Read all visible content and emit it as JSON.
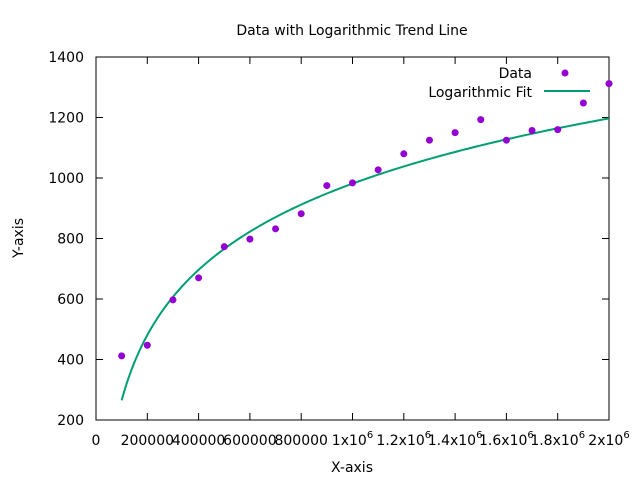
{
  "chart_data": {
    "type": "scatter",
    "title": "Data with Logarithmic Trend Line",
    "xlabel": "X-axis",
    "ylabel": "Y-axis",
    "xlim": [
      0,
      2000000
    ],
    "ylim": [
      200,
      1400
    ],
    "grid": false,
    "legend_position": "top-right",
    "x_ticks": [
      {
        "value": 0,
        "label": "0",
        "sup": ""
      },
      {
        "value": 200000,
        "label": "200000",
        "sup": ""
      },
      {
        "value": 400000,
        "label": "400000",
        "sup": ""
      },
      {
        "value": 600000,
        "label": "600000",
        "sup": ""
      },
      {
        "value": 800000,
        "label": "800000",
        "sup": ""
      },
      {
        "value": 1000000,
        "label": "1x10",
        "sup": "6"
      },
      {
        "value": 1200000,
        "label": "1.2x10",
        "sup": "6"
      },
      {
        "value": 1400000,
        "label": "1.4x10",
        "sup": "6"
      },
      {
        "value": 1600000,
        "label": "1.6x10",
        "sup": "6"
      },
      {
        "value": 1800000,
        "label": "1.8x10",
        "sup": "6"
      },
      {
        "value": 2000000,
        "label": "2x10",
        "sup": "6"
      }
    ],
    "y_ticks": [
      200,
      400,
      600,
      800,
      1000,
      1200,
      1400
    ],
    "series": [
      {
        "name": "Data",
        "kind": "points",
        "color": "#9400d3",
        "points": [
          [
            100000,
            412
          ],
          [
            200000,
            447
          ],
          [
            300000,
            597
          ],
          [
            400000,
            670
          ],
          [
            500000,
            773
          ],
          [
            600000,
            798
          ],
          [
            700000,
            832
          ],
          [
            800000,
            882
          ],
          [
            900000,
            975
          ],
          [
            1000000,
            984
          ],
          [
            1100000,
            1027
          ],
          [
            1200000,
            1080
          ],
          [
            1300000,
            1125
          ],
          [
            1400000,
            1150
          ],
          [
            1500000,
            1193
          ],
          [
            1600000,
            1125
          ],
          [
            1700000,
            1157
          ],
          [
            1800000,
            1160
          ],
          [
            1900000,
            1248
          ],
          [
            2000000,
            1312
          ]
        ]
      },
      {
        "name": "Logarithmic Fit",
        "kind": "line",
        "color": "#009e73",
        "fit": {
          "form": "a + b*ln(x)",
          "a": -3317,
          "b": 311.13,
          "x_start": 100000,
          "x_end": 2000000
        }
      }
    ]
  }
}
